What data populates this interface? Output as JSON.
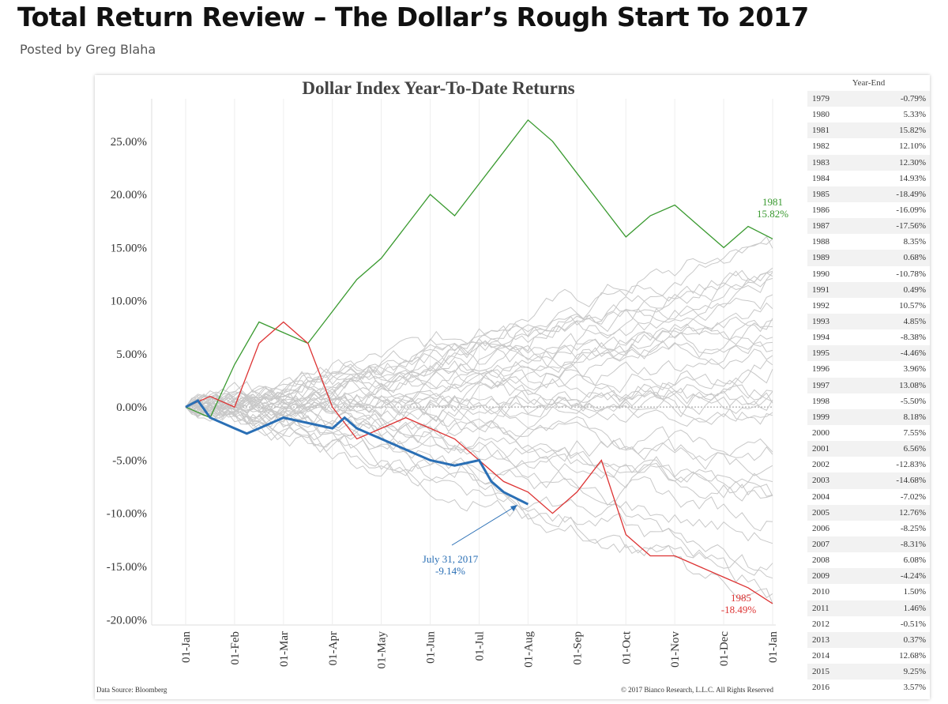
{
  "post": {
    "title": "Total Return Review – The Dollar’s Rough Start To 2017",
    "byline": "Posted by Greg Blaha"
  },
  "chart_data": {
    "type": "line",
    "title": "Dollar Index Year-To-Date Returns",
    "xlabel": "",
    "ylabel": "",
    "x_tick_labels": [
      "01-Jan",
      "01-Feb",
      "01-Mar",
      "01-Apr",
      "01-May",
      "01-Jun",
      "01-Jul",
      "01-Aug",
      "01-Sep",
      "01-Oct",
      "01-Nov",
      "01-Dec",
      "01-Jan"
    ],
    "y_tick_labels": [
      "25.00%",
      "20.00%",
      "15.00%",
      "10.00%",
      "5.00%",
      "0.00%",
      "-5.00%",
      "-10.00%",
      "-15.00%",
      "-20.00%"
    ],
    "y_ticks": [
      25,
      20,
      15,
      10,
      5,
      0,
      -5,
      -10,
      -15,
      -20
    ],
    "ylim": [
      -20.5,
      29
    ],
    "xlim_months": [
      0,
      12
    ],
    "grid": "vertical",
    "colors": {
      "background_series": "#c8c8c8",
      "series_1981": "#3a9a30",
      "series_1985": "#dd3333",
      "series_2017": "#2a6fb5",
      "zero_line": "#999999"
    },
    "highlighted_series": [
      {
        "name": "1981",
        "color": "#3a9a30",
        "x_months": [
          0,
          0.5,
          1,
          1.5,
          2,
          2.5,
          3,
          3.5,
          4,
          4.5,
          5,
          5.5,
          6,
          6.5,
          7,
          7.5,
          8,
          8.5,
          9,
          9.5,
          10,
          10.5,
          11,
          11.5,
          12
        ],
        "y_pct": [
          0,
          -1,
          4,
          8,
          7,
          6,
          9,
          12,
          14,
          17,
          20,
          18,
          21,
          24,
          27,
          25,
          22,
          19,
          16,
          18,
          19,
          17,
          15,
          17,
          15.82
        ]
      },
      {
        "name": "1985",
        "color": "#dd3333",
        "x_months": [
          0,
          0.5,
          1,
          1.5,
          2,
          2.5,
          3,
          3.5,
          4,
          4.5,
          5,
          5.5,
          6,
          6.5,
          7,
          7.5,
          8,
          8.5,
          9,
          9.5,
          10,
          10.5,
          11,
          11.5,
          12
        ],
        "y_pct": [
          0,
          1,
          0,
          6,
          8,
          6,
          0,
          -3,
          -2,
          -1,
          -2,
          -3,
          -5,
          -7,
          -8,
          -10,
          -8,
          -5,
          -12,
          -14,
          -14,
          -15,
          -16,
          -17,
          -18.49
        ]
      },
      {
        "name": "2017",
        "color": "#2a6fb5",
        "x_months": [
          0,
          0.25,
          0.5,
          1,
          1.25,
          1.5,
          2,
          2.5,
          3,
          3.25,
          3.5,
          4,
          4.5,
          5,
          5.5,
          6,
          6.25,
          6.5,
          7
        ],
        "y_pct": [
          0,
          0.6,
          -1,
          -2,
          -2.5,
          -2,
          -1,
          -1.5,
          -2,
          -1,
          -2,
          -3,
          -4,
          -5,
          -5.5,
          -5,
          -7,
          -8,
          -9.14
        ]
      }
    ],
    "annotations": [
      {
        "text": "1981",
        "value": "15.82%",
        "color": "#3a9a30"
      },
      {
        "text": "1985",
        "value": "-18.49%",
        "color": "#dd3333"
      },
      {
        "text": "July 31, 2017",
        "value": "-9.14%",
        "color": "#2a6fb5"
      }
    ],
    "year_end_table": {
      "header": "Year-End",
      "rows": [
        {
          "year": "1979",
          "ret": "-0.79%"
        },
        {
          "year": "1980",
          "ret": "5.33%"
        },
        {
          "year": "1981",
          "ret": "15.82%"
        },
        {
          "year": "1982",
          "ret": "12.10%"
        },
        {
          "year": "1983",
          "ret": "12.30%"
        },
        {
          "year": "1984",
          "ret": "14.93%"
        },
        {
          "year": "1985",
          "ret": "-18.49%"
        },
        {
          "year": "1986",
          "ret": "-16.09%"
        },
        {
          "year": "1987",
          "ret": "-17.56%"
        },
        {
          "year": "1988",
          "ret": "8.35%"
        },
        {
          "year": "1989",
          "ret": "0.68%"
        },
        {
          "year": "1990",
          "ret": "-10.78%"
        },
        {
          "year": "1991",
          "ret": "0.49%"
        },
        {
          "year": "1992",
          "ret": "10.57%"
        },
        {
          "year": "1993",
          "ret": "4.85%"
        },
        {
          "year": "1994",
          "ret": "-8.38%"
        },
        {
          "year": "1995",
          "ret": "-4.46%"
        },
        {
          "year": "1996",
          "ret": "3.96%"
        },
        {
          "year": "1997",
          "ret": "13.08%"
        },
        {
          "year": "1998",
          "ret": "-5.50%"
        },
        {
          "year": "1999",
          "ret": "8.18%"
        },
        {
          "year": "2000",
          "ret": "7.55%"
        },
        {
          "year": "2001",
          "ret": "6.56%"
        },
        {
          "year": "2002",
          "ret": "-12.83%"
        },
        {
          "year": "2003",
          "ret": "-14.68%"
        },
        {
          "year": "2004",
          "ret": "-7.02%"
        },
        {
          "year": "2005",
          "ret": "12.76%"
        },
        {
          "year": "2006",
          "ret": "-8.25%"
        },
        {
          "year": "2007",
          "ret": "-8.31%"
        },
        {
          "year": "2008",
          "ret": "6.08%"
        },
        {
          "year": "2009",
          "ret": "-4.24%"
        },
        {
          "year": "2010",
          "ret": "1.50%"
        },
        {
          "year": "2011",
          "ret": "1.46%"
        },
        {
          "year": "2012",
          "ret": "-0.51%"
        },
        {
          "year": "2013",
          "ret": "0.37%"
        },
        {
          "year": "2014",
          "ret": "12.68%"
        },
        {
          "year": "2015",
          "ret": "9.25%"
        },
        {
          "year": "2016",
          "ret": "3.57%"
        }
      ]
    },
    "source": "Data Source: Bloomberg",
    "copyright": "© 2017 Bianco Research, L.L.C. All Rights Reserved"
  }
}
